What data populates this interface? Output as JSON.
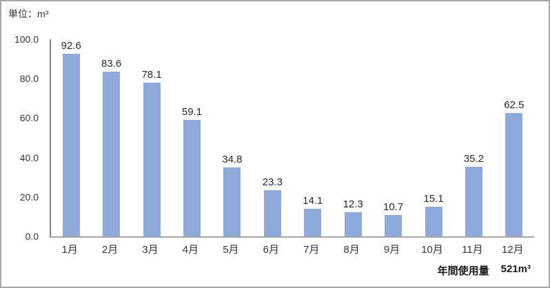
{
  "unit_label": "単位：m³",
  "chart_data": {
    "type": "bar",
    "title": "単位：m³",
    "categories": [
      "1月",
      "2月",
      "3月",
      "4月",
      "5月",
      "6月",
      "7月",
      "8月",
      "9月",
      "10月",
      "11月",
      "12月"
    ],
    "values": [
      92.6,
      83.6,
      78.1,
      59.1,
      34.8,
      23.3,
      14.1,
      12.3,
      10.7,
      15.1,
      35.2,
      62.5
    ],
    "value_labels": [
      "92.6",
      "83.6",
      "78.1",
      "59.1",
      "34.8",
      "23.3",
      "14.1",
      "12.3",
      "10.7",
      "15.1",
      "35.2",
      "62.5"
    ],
    "xlabel": "",
    "ylabel": "",
    "ylim": [
      0,
      100
    ],
    "ytick_values": [
      100,
      80,
      60,
      40,
      20,
      0
    ],
    "ytick_labels": [
      "100.0",
      "80.0",
      "60.0",
      "40.0",
      "20.0",
      "0.0"
    ],
    "grid": "off",
    "legend_position": "none",
    "data_labels": true,
    "bar_color": "#8EA9DB"
  },
  "footer": {
    "annual_label": "年間使用量",
    "annual_value": "521m³"
  },
  "colors": {
    "bar": "#8EA9DB",
    "border": "#A6A6A6",
    "y_axis_line": "#808080",
    "x_axis_line": "#A6A6A6",
    "text": "#262626"
  }
}
